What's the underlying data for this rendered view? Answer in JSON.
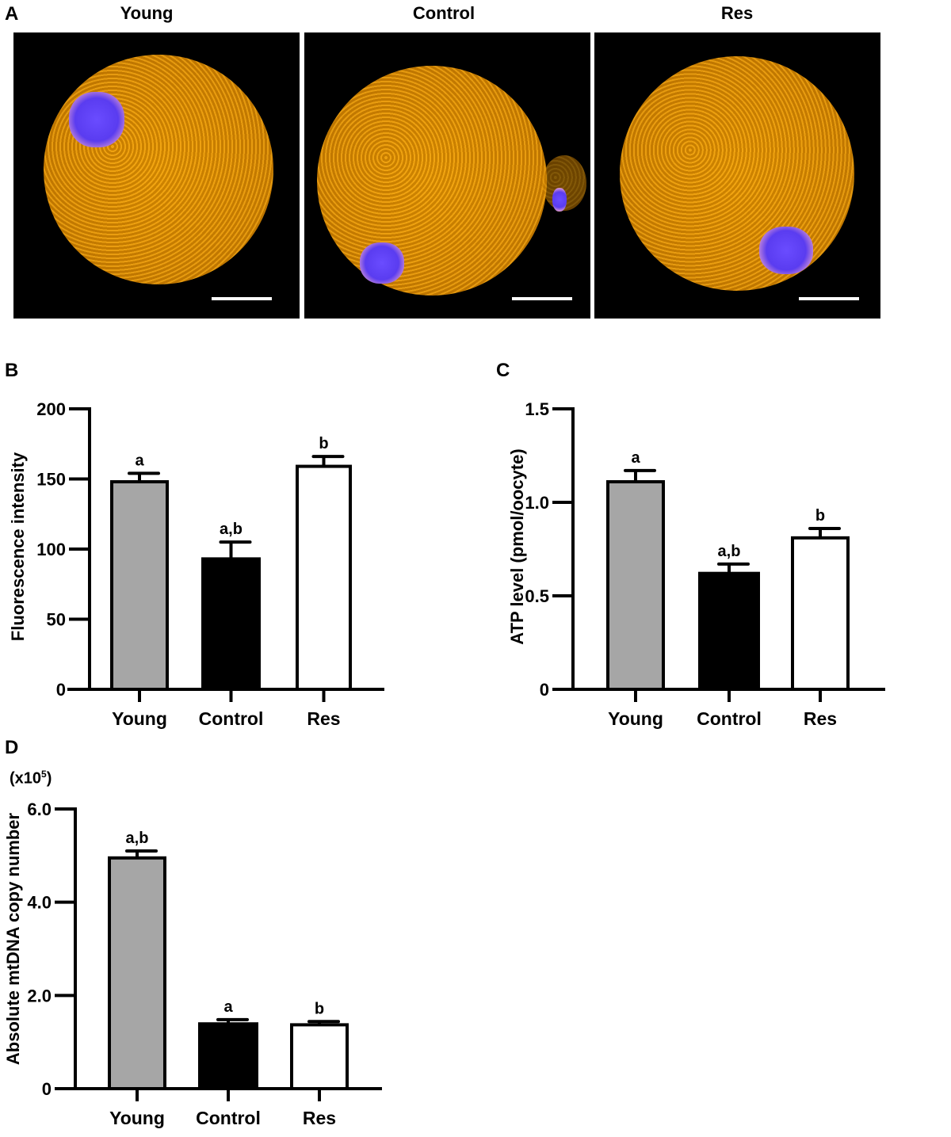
{
  "panel_a": {
    "letter": "A",
    "images": [
      {
        "title": "Young"
      },
      {
        "title": "Control"
      },
      {
        "title": "Res"
      }
    ],
    "colors": {
      "mitochondria": "#e0980e",
      "dna": "#5a3cf0",
      "background": "#000000"
    }
  },
  "chart_data": [
    {
      "panel": "B",
      "type": "bar",
      "categories": [
        "Young",
        "Control",
        "Res"
      ],
      "values": [
        148,
        93,
        159
      ],
      "error": [
        6,
        12,
        7
      ],
      "significance": [
        "a",
        "a,b",
        "b"
      ],
      "ylabel": "Fluorescence intensity",
      "ylim": [
        0,
        200
      ],
      "yticks": [
        0,
        50,
        100,
        150,
        200
      ],
      "ytick_labels": [
        "0",
        "50",
        "100",
        "150",
        "200"
      ],
      "colors": [
        "#a6a6a6",
        "#000000",
        "#ffffff"
      ],
      "grid": false
    },
    {
      "panel": "C",
      "type": "bar",
      "categories": [
        "Young",
        "Control",
        "Res"
      ],
      "values": [
        1.11,
        0.62,
        0.81
      ],
      "error": [
        0.06,
        0.05,
        0.05
      ],
      "significance": [
        "a",
        "a,b",
        "b"
      ],
      "ylabel": "ATP level (pmol/oocyte)",
      "ylim": [
        0,
        1.5
      ],
      "yticks": [
        0,
        0.5,
        1.0,
        1.5
      ],
      "ytick_labels": [
        "0",
        "0.5",
        "1.0",
        "1.5"
      ],
      "colors": [
        "#a6a6a6",
        "#000000",
        "#ffffff"
      ],
      "grid": false
    },
    {
      "panel": "D",
      "type": "bar",
      "categories": [
        "Young",
        "Control",
        "Res"
      ],
      "values": [
        4.95,
        1.39,
        1.37
      ],
      "error": [
        0.15,
        0.09,
        0.07
      ],
      "significance": [
        "a,b",
        "a",
        "b"
      ],
      "ylabel": "Absolute mtDNA copy number",
      "yunit": "(x10",
      "yunit_exp": "5",
      "yunit_close": ")",
      "ylim": [
        0,
        6.0
      ],
      "yticks": [
        0,
        2.0,
        4.0,
        6.0
      ],
      "ytick_labels": [
        "0",
        "2.0",
        "4.0",
        "6.0"
      ],
      "colors": [
        "#a6a6a6",
        "#000000",
        "#ffffff"
      ],
      "grid": false
    }
  ]
}
